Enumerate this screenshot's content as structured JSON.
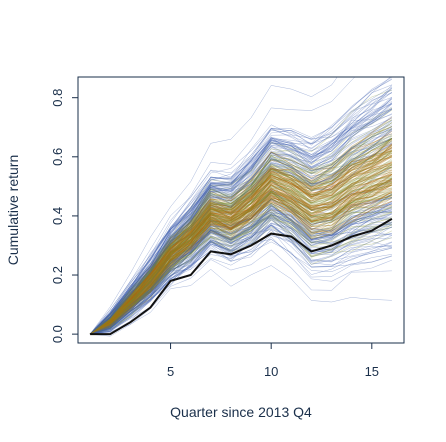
{
  "chart_data": {
    "type": "line",
    "title": "",
    "xlabel": "Quarter since 2013 Q4",
    "ylabel": "Cumulative return",
    "xlim": [
      0.4,
      16.6
    ],
    "ylim": [
      -0.03,
      0.87
    ],
    "x_ticks": [
      5,
      10,
      15
    ],
    "x_tick_labels": [
      "5",
      "10",
      "15"
    ],
    "y_ticks": [
      0.0,
      0.2,
      0.4,
      0.6,
      0.8
    ],
    "y_tick_labels": [
      "0.0",
      "0.2",
      "0.4",
      "0.6",
      "0.8"
    ],
    "grid": false,
    "legend": "none",
    "colors": {
      "simulation_path": "#3f5fae",
      "central_band": "#7a8a2a",
      "core_band": "#b36a0e",
      "highlight_path": "#111111",
      "frame": "#1a2f4a"
    },
    "x": [
      1,
      2,
      3,
      4,
      5,
      6,
      7,
      8,
      9,
      10,
      11,
      12,
      13,
      14,
      15,
      16
    ],
    "highlight_series": {
      "values": [
        0.0,
        0.0,
        0.04,
        0.09,
        0.18,
        0.2,
        0.28,
        0.27,
        0.3,
        0.34,
        0.33,
        0.28,
        0.3,
        0.33,
        0.35,
        0.39
      ]
    },
    "central_series": {
      "values": [
        0.0,
        0.04,
        0.11,
        0.18,
        0.27,
        0.33,
        0.41,
        0.39,
        0.44,
        0.51,
        0.48,
        0.43,
        0.45,
        0.5,
        0.53,
        0.56
      ]
    },
    "path_count": 320
  }
}
